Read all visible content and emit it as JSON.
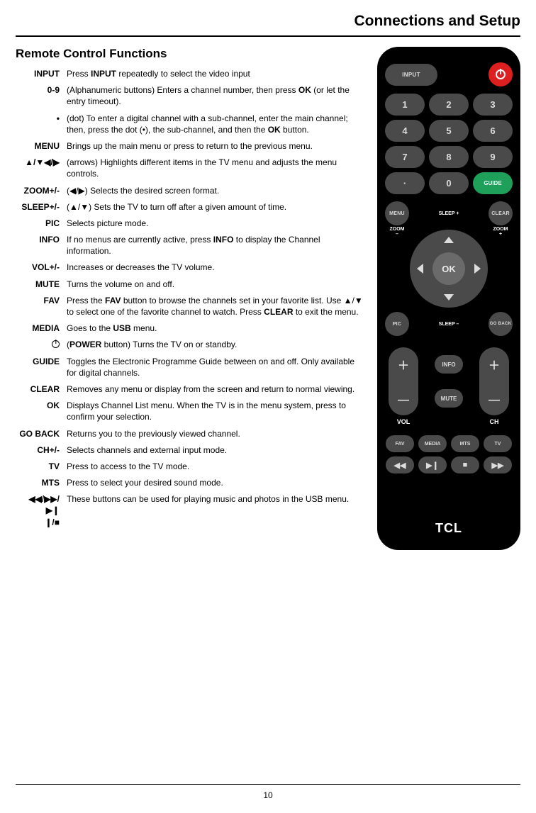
{
  "page": {
    "title": "Connections and Setup",
    "section": "Remote Control Functions",
    "page_number": "10"
  },
  "functions": [
    {
      "label": "INPUT",
      "desc_parts": [
        "Press ",
        "INPUT",
        " repeatedly to select the video input"
      ]
    },
    {
      "label": "0-9",
      "desc_parts": [
        "(Alphanumeric buttons) Enters a channel number, then press ",
        "OK",
        " (or let the entry timeout)."
      ]
    },
    {
      "label": "•",
      "desc_parts": [
        "(dot) To enter a digital channel with a sub-channel, enter the main channel; then, press the dot (•), the sub-channel, and then the ",
        "OK",
        " button."
      ]
    },
    {
      "label": "MENU",
      "desc_parts": [
        "Brings up the main menu or press to return to the previous menu."
      ]
    },
    {
      "label": "▲/▼◀/▶",
      "desc_parts": [
        "(arrows) Highlights different items in the TV menu and adjusts the menu controls."
      ]
    },
    {
      "label": "ZOOM+/-",
      "desc_parts": [
        "(◀/▶) Selects the desired screen format."
      ]
    },
    {
      "label": "SLEEP+/-",
      "desc_parts": [
        "(▲/▼) Sets the TV to turn off after a given amount of time."
      ]
    },
    {
      "label": "PIC",
      "desc_parts": [
        "Selects picture mode."
      ]
    },
    {
      "label": "INFO",
      "desc_parts": [
        "If no menus are currently active, press ",
        "INFO",
        " to display the Channel information."
      ]
    },
    {
      "label": "VOL+/-",
      "desc_parts": [
        "Increases or decreases the TV volume."
      ]
    },
    {
      "label": "MUTE",
      "desc_parts": [
        "Turns the volume on and off."
      ]
    },
    {
      "label": "FAV",
      "desc_parts": [
        "Press the ",
        "FAV",
        " button to browse the channels set in your favorite list. Use ▲/▼ to select one of the favorite channel to watch. Press ",
        "CLEAR",
        " to exit the menu."
      ]
    },
    {
      "label": "MEDIA",
      "desc_parts": [
        "Goes to the ",
        "USB",
        " menu."
      ]
    },
    {
      "label": "__POWER_ICON__",
      "desc_parts": [
        "(",
        "POWER",
        " button) Turns the TV on or standby."
      ]
    },
    {
      "label": "GUIDE",
      "desc_parts": [
        "Toggles the Electronic Programme Guide between on and off. Only available for digital channels."
      ]
    },
    {
      "label": "CLEAR",
      "desc_parts": [
        "Removes any menu or display from the screen and return to normal viewing."
      ]
    },
    {
      "label": "OK",
      "desc_parts": [
        "Displays Channel List menu. When the TV is in the menu system, press to confirm your selection."
      ]
    },
    {
      "label": "GO BACK",
      "desc_parts": [
        "Returns you to the previously viewed channel."
      ]
    },
    {
      "label": "CH+/-",
      "desc_parts": [
        "Selects channels and external input mode."
      ]
    },
    {
      "label": "TV",
      "desc_parts": [
        "Press to access to the TV mode."
      ]
    },
    {
      "label": "MTS",
      "desc_parts": [
        "Press to select your desired sound mode."
      ]
    },
    {
      "label": "◀◀/▶▶/▶❙\n❙/■",
      "desc_parts": [
        "These buttons can be used for playing music and photos in the USB menu."
      ]
    }
  ],
  "bold_tokens": [
    "INPUT",
    "OK",
    "INFO",
    "FAV",
    "CLEAR",
    "USB",
    "POWER"
  ],
  "remote": {
    "brand": "TCL",
    "input_label": "INPUT",
    "guide_label": "GUIDE",
    "menu_label": "MENU",
    "clear_label": "CLEAR",
    "pic_label": "PIC",
    "goback_label": "GO BACK",
    "info_label": "INFO",
    "mute_label": "MUTE",
    "vol_label": "VOL",
    "ch_label": "CH",
    "fav_label": "FAV",
    "media_label": "MEDIA",
    "mts_label": "MTS",
    "tv_label": "TV",
    "ok_label": "OK",
    "sleep_plus": "SLEEP +",
    "sleep_minus": "SLEEP –",
    "zoom_plus": "ZOOM\n+",
    "zoom_minus": "ZOOM\n–",
    "digits": [
      "1",
      "2",
      "3",
      "4",
      "5",
      "6",
      "7",
      "8",
      "9",
      "·",
      "0"
    ],
    "colors": {
      "body": "#000000",
      "button": "#4a4a4a",
      "power": "#dd1f1f",
      "guide": "#1fa05a",
      "text": "#dcdcdc"
    }
  }
}
